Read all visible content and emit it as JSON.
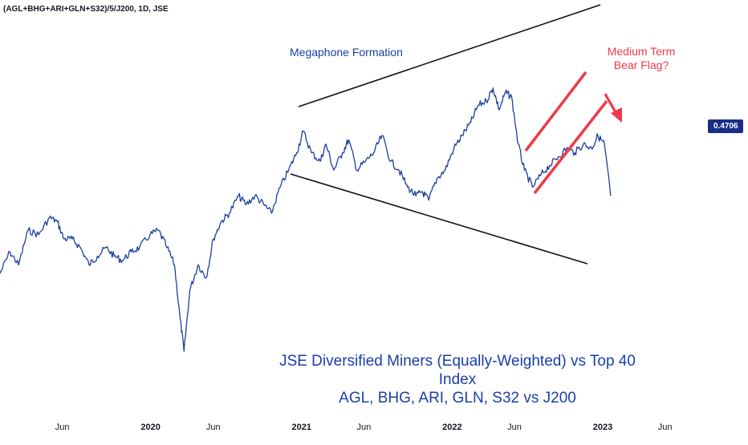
{
  "symbol": "(AGL+BHG+ARI+GLN+S32)/5/J200, 1D, JSE",
  "annotations": {
    "megaphone": "Megaphone Formation",
    "bear_flag_line1": "Medium Term",
    "bear_flag_line2": "Bear Flag?",
    "subtitle_line1": "JSE Diversified Miners (Equally-Weighted) vs Top 40 Index",
    "subtitle_line2": "AGL, BHG, ARI, GLN, S32 vs J200"
  },
  "price_label": "0.4706",
  "colors": {
    "series": "#1c3f9e",
    "flag": "#f0394a",
    "trendline": "#111111",
    "price_tag_bg": "#1a2e86",
    "text_blue": "#1a3fa6"
  },
  "chart_data": {
    "type": "line",
    "x_ticks": [
      {
        "label": "Jun",
        "date": "2019-06-01"
      },
      {
        "label": "2020",
        "date": "2020-01-01"
      },
      {
        "label": "Jun",
        "date": "2020-06-01"
      },
      {
        "label": "2021",
        "date": "2021-01-01"
      },
      {
        "label": "Jun",
        "date": "2021-06-01"
      },
      {
        "label": "2022",
        "date": "2022-01-01"
      },
      {
        "label": "Jun",
        "date": "2022-06-01"
      },
      {
        "label": "2023",
        "date": "2023-01-01"
      },
      {
        "label": "Jun",
        "date": "2023-06-01"
      }
    ],
    "series": [
      {
        "values": [
          [
            "2019-01-01",
            0.38
          ],
          [
            "2019-01-25",
            0.405
          ],
          [
            "2019-02-15",
            0.39
          ],
          [
            "2019-03-10",
            0.43
          ],
          [
            "2019-04-05",
            0.425
          ],
          [
            "2019-05-01",
            0.445
          ],
          [
            "2019-05-20",
            0.44
          ],
          [
            "2019-06-05",
            0.42
          ],
          [
            "2019-06-25",
            0.42
          ],
          [
            "2019-07-15",
            0.41
          ],
          [
            "2019-08-05",
            0.39
          ],
          [
            "2019-08-25",
            0.4
          ],
          [
            "2019-09-15",
            0.41
          ],
          [
            "2019-10-05",
            0.4
          ],
          [
            "2019-10-25",
            0.395
          ],
          [
            "2019-11-15",
            0.405
          ],
          [
            "2019-12-05",
            0.41
          ],
          [
            "2019-12-31",
            0.425
          ],
          [
            "2020-01-20",
            0.43
          ],
          [
            "2020-02-10",
            0.41
          ],
          [
            "2020-02-28",
            0.39
          ],
          [
            "2020-03-12",
            0.33
          ],
          [
            "2020-03-22",
            0.29
          ],
          [
            "2020-04-05",
            0.36
          ],
          [
            "2020-04-25",
            0.39
          ],
          [
            "2020-05-15",
            0.375
          ],
          [
            "2020-06-01",
            0.42
          ],
          [
            "2020-06-20",
            0.44
          ],
          [
            "2020-07-10",
            0.45
          ],
          [
            "2020-08-01",
            0.47
          ],
          [
            "2020-08-20",
            0.46
          ],
          [
            "2020-09-10",
            0.47
          ],
          [
            "2020-10-01",
            0.46
          ],
          [
            "2020-10-20",
            0.45
          ],
          [
            "2020-11-10",
            0.48
          ],
          [
            "2020-12-01",
            0.5
          ],
          [
            "2020-12-20",
            0.52
          ],
          [
            "2021-01-05",
            0.545
          ],
          [
            "2021-01-25",
            0.52
          ],
          [
            "2021-02-15",
            0.51
          ],
          [
            "2021-03-01",
            0.53
          ],
          [
            "2021-03-20",
            0.5
          ],
          [
            "2021-04-10",
            0.52
          ],
          [
            "2021-04-25",
            0.535
          ],
          [
            "2021-05-15",
            0.5
          ],
          [
            "2021-06-05",
            0.51
          ],
          [
            "2021-06-25",
            0.52
          ],
          [
            "2021-07-15",
            0.54
          ],
          [
            "2021-08-05",
            0.51
          ],
          [
            "2021-08-25",
            0.5
          ],
          [
            "2021-09-15",
            0.48
          ],
          [
            "2021-10-05",
            0.47
          ],
          [
            "2021-10-20",
            0.475
          ],
          [
            "2021-11-05",
            0.465
          ],
          [
            "2021-11-25",
            0.49
          ],
          [
            "2021-12-15",
            0.5
          ],
          [
            "2022-01-05",
            0.525
          ],
          [
            "2022-01-25",
            0.54
          ],
          [
            "2022-02-15",
            0.555
          ],
          [
            "2022-03-05",
            0.575
          ],
          [
            "2022-03-25",
            0.58
          ],
          [
            "2022-04-10",
            0.595
          ],
          [
            "2022-04-25",
            0.57
          ],
          [
            "2022-05-10",
            0.59
          ],
          [
            "2022-05-25",
            0.585
          ],
          [
            "2022-06-10",
            0.53
          ],
          [
            "2022-06-25",
            0.5
          ],
          [
            "2022-07-15",
            0.48
          ],
          [
            "2022-08-05",
            0.495
          ],
          [
            "2022-08-25",
            0.505
          ],
          [
            "2022-09-15",
            0.515
          ],
          [
            "2022-10-05",
            0.525
          ],
          [
            "2022-10-25",
            0.52
          ],
          [
            "2022-11-15",
            0.53
          ],
          [
            "2022-12-05",
            0.525
          ],
          [
            "2022-12-20",
            0.54
          ],
          [
            "2023-01-05",
            0.53
          ],
          [
            "2023-01-20",
            0.4706
          ]
        ]
      }
    ],
    "current_value": 0.4706,
    "ylim": [
      0.26,
      0.66
    ],
    "xlim": [
      "2019-01-01",
      "2023-08-01"
    ],
    "grid": false,
    "legend": "none"
  }
}
